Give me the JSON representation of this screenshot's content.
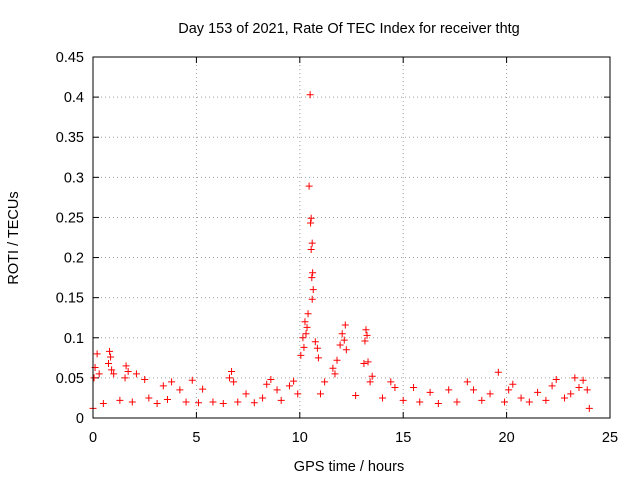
{
  "chart_data": {
    "type": "scatter",
    "title": "Day 153 of 2021, Rate Of TEC Index for receiver thtg",
    "xlabel": "GPS time / hours",
    "ylabel": "ROTI / TECUs",
    "xlim": [
      0,
      25
    ],
    "ylim": [
      0,
      0.45
    ],
    "xticks": [
      0,
      5,
      10,
      15,
      20,
      25
    ],
    "xtick_labels": [
      "0",
      "5",
      "10",
      "15",
      "20",
      "25"
    ],
    "yticks": [
      0,
      0.05,
      0.1,
      0.15,
      0.2,
      0.25,
      0.3,
      0.35,
      0.4,
      0.45
    ],
    "ytick_labels": [
      "0",
      "0.05",
      "0.1",
      "0.15",
      "0.2",
      "0.25",
      "0.3",
      "0.35",
      "0.4",
      "0.45"
    ],
    "grid": true,
    "marker": "+",
    "marker_color": "#ff0000",
    "series": [
      {
        "name": "ROTI",
        "points": [
          [
            10.5,
            0.403
          ],
          [
            10.45,
            0.289
          ],
          [
            10.55,
            0.249
          ],
          [
            10.52,
            0.243
          ],
          [
            10.6,
            0.218
          ],
          [
            10.55,
            0.21
          ],
          [
            10.62,
            0.181
          ],
          [
            10.58,
            0.175
          ],
          [
            10.65,
            0.16
          ],
          [
            10.6,
            0.148
          ],
          [
            10.4,
            0.13
          ],
          [
            10.25,
            0.12
          ],
          [
            10.35,
            0.113
          ],
          [
            10.15,
            0.1
          ],
          [
            10.3,
            0.105
          ],
          [
            10.75,
            0.095
          ],
          [
            10.85,
            0.087
          ],
          [
            10.9,
            0.075
          ],
          [
            10.2,
            0.088
          ],
          [
            10.05,
            0.078
          ],
          [
            12.2,
            0.116
          ],
          [
            12.05,
            0.105
          ],
          [
            12.15,
            0.097
          ],
          [
            11.95,
            0.091
          ],
          [
            12.25,
            0.085
          ],
          [
            11.8,
            0.072
          ],
          [
            11.6,
            0.062
          ],
          [
            11.7,
            0.055
          ],
          [
            13.2,
            0.11
          ],
          [
            13.25,
            0.103
          ],
          [
            13.15,
            0.096
          ],
          [
            13.3,
            0.07
          ],
          [
            13.1,
            0.068
          ],
          [
            13.5,
            0.052
          ],
          [
            13.4,
            0.045
          ],
          [
            0.2,
            0.08
          ],
          [
            0.1,
            0.063
          ],
          [
            0.3,
            0.055
          ],
          [
            0.05,
            0.05
          ],
          [
            0.8,
            0.083
          ],
          [
            0.85,
            0.076
          ],
          [
            0.75,
            0.068
          ],
          [
            0.9,
            0.06
          ],
          [
            1.0,
            0.055
          ],
          [
            1.6,
            0.065
          ],
          [
            1.7,
            0.058
          ],
          [
            1.55,
            0.05
          ],
          [
            2.1,
            0.055
          ],
          [
            2.5,
            0.048
          ],
          [
            3.4,
            0.04
          ],
          [
            3.8,
            0.045
          ],
          [
            4.2,
            0.035
          ],
          [
            4.8,
            0.047
          ],
          [
            5.3,
            0.036
          ],
          [
            6.7,
            0.058
          ],
          [
            6.6,
            0.05
          ],
          [
            6.8,
            0.045
          ],
          [
            7.4,
            0.03
          ],
          [
            8.6,
            0.048
          ],
          [
            8.4,
            0.042
          ],
          [
            8.9,
            0.035
          ],
          [
            9.5,
            0.04
          ],
          [
            9.7,
            0.046
          ],
          [
            11.2,
            0.045
          ],
          [
            14.4,
            0.045
          ],
          [
            14.6,
            0.038
          ],
          [
            15.5,
            0.038
          ],
          [
            16.3,
            0.032
          ],
          [
            17.2,
            0.035
          ],
          [
            18.1,
            0.045
          ],
          [
            18.4,
            0.035
          ],
          [
            19.6,
            0.057
          ],
          [
            19.2,
            0.03
          ],
          [
            20.3,
            0.042
          ],
          [
            20.1,
            0.035
          ],
          [
            21.5,
            0.032
          ],
          [
            22.4,
            0.048
          ],
          [
            22.2,
            0.04
          ],
          [
            23.3,
            0.05
          ],
          [
            23.7,
            0.047
          ],
          [
            23.5,
            0.038
          ],
          [
            23.9,
            0.035
          ],
          [
            0.0,
            0.012
          ],
          [
            0.5,
            0.018
          ],
          [
            1.3,
            0.022
          ],
          [
            1.9,
            0.02
          ],
          [
            2.7,
            0.025
          ],
          [
            3.1,
            0.018
          ],
          [
            3.6,
            0.023
          ],
          [
            4.5,
            0.02
          ],
          [
            5.1,
            0.019
          ],
          [
            5.8,
            0.02
          ],
          [
            6.3,
            0.018
          ],
          [
            7.0,
            0.02
          ],
          [
            7.8,
            0.019
          ],
          [
            8.2,
            0.025
          ],
          [
            9.1,
            0.022
          ],
          [
            9.9,
            0.03
          ],
          [
            11.0,
            0.03
          ],
          [
            12.7,
            0.028
          ],
          [
            14.0,
            0.025
          ],
          [
            15.0,
            0.022
          ],
          [
            15.8,
            0.02
          ],
          [
            16.7,
            0.018
          ],
          [
            17.6,
            0.02
          ],
          [
            18.8,
            0.022
          ],
          [
            19.9,
            0.02
          ],
          [
            20.7,
            0.025
          ],
          [
            21.1,
            0.02
          ],
          [
            21.9,
            0.022
          ],
          [
            22.8,
            0.025
          ],
          [
            23.1,
            0.03
          ],
          [
            24.0,
            0.012
          ]
        ]
      }
    ]
  }
}
